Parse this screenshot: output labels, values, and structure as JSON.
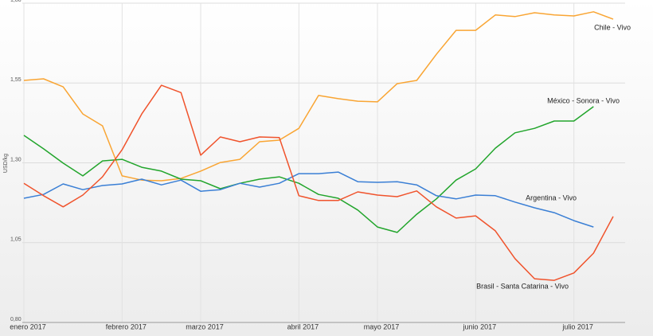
{
  "chart_data": {
    "type": "line",
    "y_label": "USD/kg",
    "categories": [
      "enero 2017",
      null,
      null,
      null,
      null,
      "febrero 2017",
      null,
      null,
      null,
      "marzo 2017",
      null,
      null,
      null,
      null,
      "abril 2017",
      null,
      null,
      null,
      "mayo 2017",
      null,
      null,
      null,
      null,
      "junio 2017",
      null,
      null,
      null,
      null,
      "julio 2017",
      null,
      null
    ],
    "ylim": [
      0.8,
      1.8
    ],
    "yticks": [
      {
        "value": 0.8,
        "label": "0,80"
      },
      {
        "value": 1.05,
        "label": "1,05"
      },
      {
        "value": 1.3,
        "label": "1,30"
      },
      {
        "value": 1.55,
        "label": "1,55"
      },
      {
        "value": 1.8,
        "label": "1,80"
      }
    ],
    "grid": true,
    "series": [
      {
        "name": "Chile - Vivo",
        "color": "#f9a533",
        "values": [
          1.558,
          1.563,
          1.538,
          1.453,
          1.416,
          1.259,
          1.246,
          1.244,
          1.251,
          1.274,
          1.301,
          1.311,
          1.366,
          1.371,
          1.408,
          1.511,
          1.501,
          1.493,
          1.491,
          1.548,
          1.558,
          1.64,
          1.715,
          1.715,
          1.763,
          1.758,
          1.77,
          1.763,
          1.76,
          1.773,
          1.75
        ]
      },
      {
        "name": "México - Sonora - Vivo",
        "color": "#22a52c",
        "values": [
          1.386,
          1.344,
          1.299,
          1.259,
          1.306,
          1.311,
          1.286,
          1.274,
          1.249,
          1.244,
          1.219,
          1.236,
          1.249,
          1.256,
          1.236,
          1.201,
          1.189,
          1.152,
          1.099,
          1.082,
          1.139,
          1.187,
          1.246,
          1.281,
          1.346,
          1.394,
          1.408,
          1.431,
          1.431,
          1.476,
          null
        ]
      },
      {
        "name": "Argentina - Vivo",
        "color": "#3a7fd5",
        "values": [
          1.189,
          1.201,
          1.234,
          1.216,
          1.229,
          1.234,
          1.249,
          1.231,
          1.246,
          1.211,
          1.216,
          1.236,
          1.224,
          1.236,
          1.266,
          1.266,
          1.271,
          1.241,
          1.239,
          1.241,
          1.231,
          1.197,
          1.187,
          1.199,
          1.197,
          1.177,
          1.159,
          1.144,
          1.119,
          1.099,
          null
        ]
      },
      {
        "name": "Brasil - Santa Catarina - Vivo",
        "color": "#f0532c",
        "values": [
          1.236,
          1.197,
          1.162,
          1.199,
          1.256,
          1.341,
          1.453,
          1.543,
          1.52,
          1.324,
          1.381,
          1.366,
          1.381,
          1.379,
          1.197,
          1.182,
          1.182,
          1.209,
          1.199,
          1.194,
          1.212,
          1.162,
          1.127,
          1.134,
          1.087,
          1.0,
          0.937,
          0.932,
          0.955,
          1.017,
          1.132
        ]
      }
    ]
  }
}
